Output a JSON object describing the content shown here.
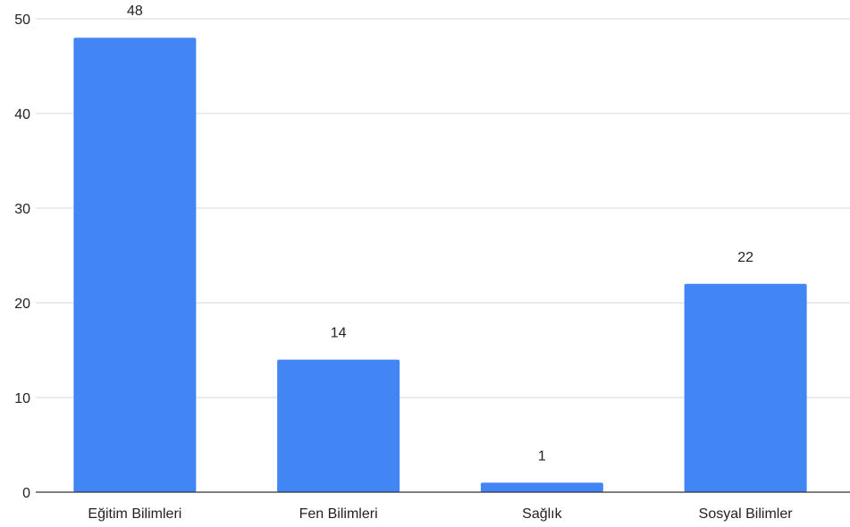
{
  "chart_data": {
    "type": "bar",
    "categories": [
      "Eğitim Bilimleri",
      "Fen Bilimleri",
      "Sağlık",
      "Sosyal Bilimler"
    ],
    "values": [
      48,
      14,
      1,
      22
    ],
    "data_labels": [
      "48",
      "14",
      "1",
      "22"
    ],
    "title": "",
    "xlabel": "",
    "ylabel": "",
    "ylim": [
      0,
      50
    ],
    "yticks": [
      0,
      10,
      20,
      30,
      40,
      50
    ],
    "ytick_labels": [
      "0",
      "10",
      "20",
      "30",
      "40",
      "50"
    ],
    "grid": true,
    "legend": "none",
    "bar_color": "#4285F4"
  }
}
